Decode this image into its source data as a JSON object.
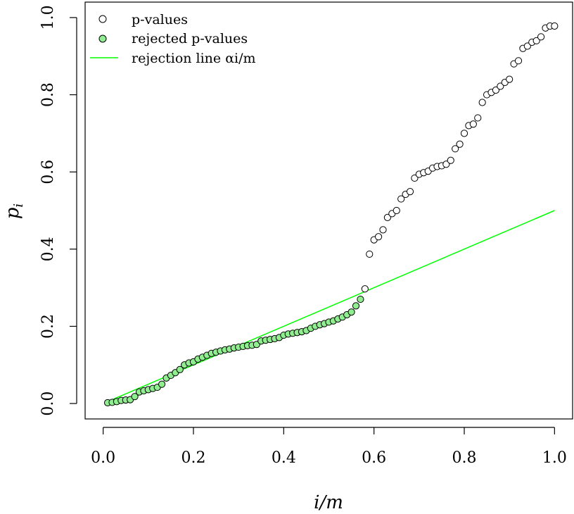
{
  "chart_data": {
    "type": "scatter",
    "xlabel": "i/m",
    "ylabel": "p",
    "ylabel_sub": "i",
    "xlim": [
      -0.04,
      1.04
    ],
    "ylim": [
      -0.04,
      1.04
    ],
    "xticks": [
      "0.0",
      "0.2",
      "0.4",
      "0.6",
      "0.8",
      "1.0"
    ],
    "yticks": [
      "0.0",
      "0.2",
      "0.4",
      "0.6",
      "0.8",
      "1.0"
    ],
    "grid": false,
    "legend": {
      "position": "top-left",
      "entries": [
        {
          "label": "p-values",
          "marker": "open-circle"
        },
        {
          "label": "rejected p-values",
          "marker": "filled-circle",
          "color": "#90ee90"
        },
        {
          "label": "rejection line αi/m",
          "marker": "line",
          "color": "#00ff00"
        }
      ]
    },
    "rejection_line": {
      "alpha": 0.5,
      "x": [
        0.01,
        1.0
      ],
      "y": [
        0.005,
        0.5
      ],
      "color": "#00ff00"
    },
    "series": [
      {
        "name": "rejected p-values",
        "fill": "#90ee90",
        "x": [
          0.01,
          0.02,
          0.03,
          0.04,
          0.05,
          0.06,
          0.07,
          0.08,
          0.09,
          0.1,
          0.11,
          0.12,
          0.13,
          0.14,
          0.15,
          0.16,
          0.17,
          0.18,
          0.19,
          0.2,
          0.21,
          0.22,
          0.23,
          0.24,
          0.25,
          0.26,
          0.27,
          0.28,
          0.29,
          0.3,
          0.31,
          0.32,
          0.33,
          0.34,
          0.35,
          0.36,
          0.37,
          0.38,
          0.39,
          0.4,
          0.41,
          0.42,
          0.43,
          0.44,
          0.45,
          0.46,
          0.47,
          0.48,
          0.49,
          0.5,
          0.51,
          0.52,
          0.53,
          0.54,
          0.55,
          0.56,
          0.57
        ],
        "y": [
          0.002,
          0.003,
          0.005,
          0.008,
          0.009,
          0.01,
          0.018,
          0.03,
          0.033,
          0.036,
          0.039,
          0.042,
          0.05,
          0.066,
          0.073,
          0.08,
          0.088,
          0.1,
          0.105,
          0.108,
          0.115,
          0.12,
          0.125,
          0.13,
          0.133,
          0.136,
          0.139,
          0.141,
          0.144,
          0.146,
          0.148,
          0.15,
          0.151,
          0.153,
          0.162,
          0.164,
          0.166,
          0.168,
          0.171,
          0.177,
          0.18,
          0.182,
          0.184,
          0.186,
          0.189,
          0.195,
          0.2,
          0.204,
          0.207,
          0.211,
          0.214,
          0.219,
          0.224,
          0.23,
          0.237,
          0.253,
          0.27
        ]
      },
      {
        "name": "p-values",
        "fill": "#ffffff",
        "x": [
          0.58,
          0.59,
          0.6,
          0.61,
          0.62,
          0.63,
          0.64,
          0.65,
          0.66,
          0.67,
          0.68,
          0.69,
          0.7,
          0.71,
          0.72,
          0.73,
          0.74,
          0.75,
          0.76,
          0.77,
          0.78,
          0.79,
          0.8,
          0.81,
          0.82,
          0.83,
          0.84,
          0.85,
          0.86,
          0.87,
          0.88,
          0.89,
          0.9,
          0.91,
          0.92,
          0.93,
          0.94,
          0.95,
          0.96,
          0.97,
          0.98,
          0.99,
          1.0
        ],
        "y": [
          0.297,
          0.387,
          0.424,
          0.432,
          0.45,
          0.482,
          0.492,
          0.5,
          0.53,
          0.542,
          0.549,
          0.584,
          0.594,
          0.598,
          0.602,
          0.61,
          0.614,
          0.616,
          0.62,
          0.63,
          0.66,
          0.672,
          0.7,
          0.72,
          0.724,
          0.74,
          0.78,
          0.8,
          0.806,
          0.812,
          0.822,
          0.832,
          0.84,
          0.88,
          0.888,
          0.92,
          0.926,
          0.936,
          0.94,
          0.95,
          0.973,
          0.978,
          0.978
        ]
      }
    ]
  }
}
